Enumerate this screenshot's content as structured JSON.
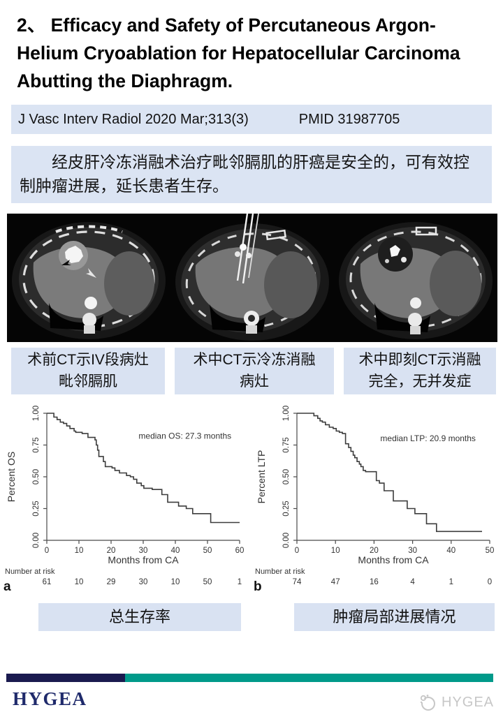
{
  "title": "2、 Efficacy and Safety of Percutaneous Argon-Helium Cryoablation for Hepatocellular Carcinoma Abutting the Diaphragm.",
  "citation": {
    "journal": "J Vasc Interv Radiol 2020 Mar;313(3)",
    "pmid": "PMID 31987705"
  },
  "summary": "经皮肝冷冻消融术治疗毗邻膈肌的肝癌是安全的，可有效控制肿瘤进展，延长患者生存。",
  "ct_captions": [
    {
      "line1": "术前CT示IV段病灶",
      "line2": "毗邻膈肌"
    },
    {
      "line1": "术中CT示冷冻消融",
      "line2": "病灶"
    },
    {
      "line1": "术中即刻CT示消融",
      "line2": "完全，无并发症"
    }
  ],
  "chart_captions": {
    "os": "总生存率",
    "ltp": "肿瘤局部进展情况"
  },
  "footer": {
    "logo_text": "HYGEA",
    "watermark_text": "HYGEA"
  },
  "colors": {
    "box_blue": "#dbe4f3",
    "navy": "#1a1a4f",
    "teal": "#009a8a",
    "logo_navy": "#1f2a6b"
  },
  "chart_data": [
    {
      "type": "line",
      "panel_label": "a",
      "ylabel": "Percent OS",
      "xlabel": "Months from CA",
      "annotation": "median OS: 27.3 months",
      "annotation_xy": [
        43,
        0.8
      ],
      "xlim": [
        0,
        60
      ],
      "ylim": [
        0,
        1
      ],
      "xticks": [
        0,
        10,
        20,
        30,
        40,
        50,
        60
      ],
      "ytick_labels": [
        "0.00",
        "0.25",
        "0.50",
        "0.75",
        "1.00"
      ],
      "number_at_risk_label": "Number at risk",
      "number_at_risk": [
        "61",
        "10",
        "29",
        "30",
        "10",
        "50",
        "1"
      ],
      "steps": [
        [
          0,
          1.0
        ],
        [
          2.2,
          1.0
        ],
        [
          2.2,
          0.97
        ],
        [
          3.2,
          0.97
        ],
        [
          3.2,
          0.95
        ],
        [
          4.2,
          0.95
        ],
        [
          4.2,
          0.93
        ],
        [
          5.2,
          0.93
        ],
        [
          5.2,
          0.92
        ],
        [
          6.2,
          0.92
        ],
        [
          6.2,
          0.9
        ],
        [
          7.2,
          0.9
        ],
        [
          7.2,
          0.88
        ],
        [
          8.5,
          0.88
        ],
        [
          8.5,
          0.86
        ],
        [
          9,
          0.86
        ],
        [
          9,
          0.85
        ],
        [
          11,
          0.85
        ],
        [
          11,
          0.84
        ],
        [
          12.8,
          0.84
        ],
        [
          12.8,
          0.81
        ],
        [
          15,
          0.81
        ],
        [
          15,
          0.79
        ],
        [
          15.4,
          0.79
        ],
        [
          15.4,
          0.75
        ],
        [
          15.8,
          0.75
        ],
        [
          15.8,
          0.71
        ],
        [
          16.2,
          0.71
        ],
        [
          16.2,
          0.66
        ],
        [
          17.6,
          0.66
        ],
        [
          17.6,
          0.62
        ],
        [
          18.2,
          0.62
        ],
        [
          18.2,
          0.58
        ],
        [
          20.3,
          0.58
        ],
        [
          20.3,
          0.57
        ],
        [
          21.2,
          0.57
        ],
        [
          21.2,
          0.55
        ],
        [
          22.6,
          0.55
        ],
        [
          22.6,
          0.53
        ],
        [
          24.8,
          0.53
        ],
        [
          24.8,
          0.51
        ],
        [
          26,
          0.51
        ],
        [
          26,
          0.5
        ],
        [
          27,
          0.5
        ],
        [
          27,
          0.48
        ],
        [
          28,
          0.48
        ],
        [
          28,
          0.45
        ],
        [
          29.4,
          0.45
        ],
        [
          29.4,
          0.43
        ],
        [
          30.2,
          0.43
        ],
        [
          30.2,
          0.41
        ],
        [
          32.8,
          0.41
        ],
        [
          32.8,
          0.4
        ],
        [
          35.8,
          0.4
        ],
        [
          35.8,
          0.36
        ],
        [
          37.6,
          0.36
        ],
        [
          37.6,
          0.3
        ],
        [
          41,
          0.3
        ],
        [
          41,
          0.27
        ],
        [
          43.4,
          0.27
        ],
        [
          43.4,
          0.25
        ],
        [
          45.4,
          0.25
        ],
        [
          45.4,
          0.21
        ],
        [
          51,
          0.21
        ],
        [
          51,
          0.14
        ],
        [
          60,
          0.14
        ]
      ]
    },
    {
      "type": "line",
      "panel_label": "b",
      "ylabel": "Percent LTP",
      "xlabel": "Months from CA",
      "annotation": "median LTP: 20.9 months",
      "annotation_xy": [
        34,
        0.78
      ],
      "xlim": [
        0,
        50
      ],
      "ylim": [
        0,
        1
      ],
      "xticks": [
        0,
        10,
        20,
        30,
        40,
        50
      ],
      "ytick_labels": [
        "0.00",
        "0.25",
        "0.50",
        "0.75",
        "1.00"
      ],
      "number_at_risk_label": "Number at risk",
      "number_at_risk": [
        "74",
        "47",
        "16",
        "4",
        "1",
        "0"
      ],
      "steps": [
        [
          0,
          1.0
        ],
        [
          4.4,
          1.0
        ],
        [
          4.4,
          0.98
        ],
        [
          5.4,
          0.98
        ],
        [
          5.4,
          0.96
        ],
        [
          6,
          0.96
        ],
        [
          6,
          0.94
        ],
        [
          6.6,
          0.94
        ],
        [
          6.6,
          0.93
        ],
        [
          7.4,
          0.93
        ],
        [
          7.4,
          0.91
        ],
        [
          8.4,
          0.91
        ],
        [
          8.4,
          0.89
        ],
        [
          9.4,
          0.89
        ],
        [
          9.4,
          0.88
        ],
        [
          10.2,
          0.88
        ],
        [
          10.2,
          0.86
        ],
        [
          11,
          0.86
        ],
        [
          11,
          0.85
        ],
        [
          11.8,
          0.85
        ],
        [
          11.8,
          0.84
        ],
        [
          12.6,
          0.84
        ],
        [
          12.6,
          0.76
        ],
        [
          13.4,
          0.76
        ],
        [
          13.4,
          0.73
        ],
        [
          14,
          0.73
        ],
        [
          14,
          0.7
        ],
        [
          14.6,
          0.7
        ],
        [
          14.6,
          0.67
        ],
        [
          15,
          0.67
        ],
        [
          15,
          0.65
        ],
        [
          15.6,
          0.65
        ],
        [
          15.6,
          0.62
        ],
        [
          16.2,
          0.62
        ],
        [
          16.2,
          0.6
        ],
        [
          16.6,
          0.6
        ],
        [
          16.6,
          0.58
        ],
        [
          17.2,
          0.58
        ],
        [
          17.2,
          0.55
        ],
        [
          17.8,
          0.55
        ],
        [
          17.8,
          0.54
        ],
        [
          20.6,
          0.54
        ],
        [
          20.6,
          0.47
        ],
        [
          21.4,
          0.47
        ],
        [
          21.4,
          0.45
        ],
        [
          22.6,
          0.45
        ],
        [
          22.6,
          0.39
        ],
        [
          25,
          0.39
        ],
        [
          25,
          0.31
        ],
        [
          28.6,
          0.31
        ],
        [
          28.6,
          0.25
        ],
        [
          30.6,
          0.25
        ],
        [
          30.6,
          0.21
        ],
        [
          33.6,
          0.21
        ],
        [
          33.6,
          0.13
        ],
        [
          36.2,
          0.13
        ],
        [
          36.2,
          0.07
        ],
        [
          48,
          0.07
        ]
      ]
    }
  ]
}
